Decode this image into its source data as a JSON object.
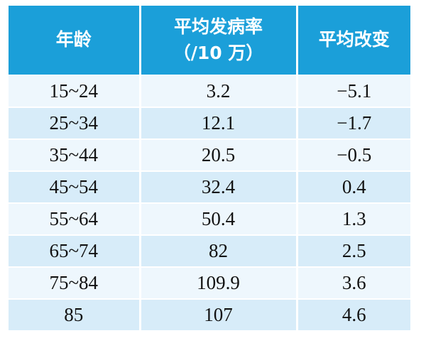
{
  "table": {
    "header": [
      "年龄",
      [
        "平均发病率",
        "（/10 万）"
      ],
      "平均改变"
    ],
    "rows": [
      [
        "15~24",
        "3.2",
        "−5.1"
      ],
      [
        "25~34",
        "12.1",
        "−1.7"
      ],
      [
        "35~44",
        "20.5",
        "−0.5"
      ],
      [
        "45~54",
        "32.4",
        "0.4"
      ],
      [
        "55~64",
        "50.4",
        "1.3"
      ],
      [
        "65~74",
        "82",
        "2.5"
      ],
      [
        "75~84",
        "109.9",
        "3.6"
      ],
      [
        "85",
        "107",
        "4.6"
      ]
    ]
  }
}
